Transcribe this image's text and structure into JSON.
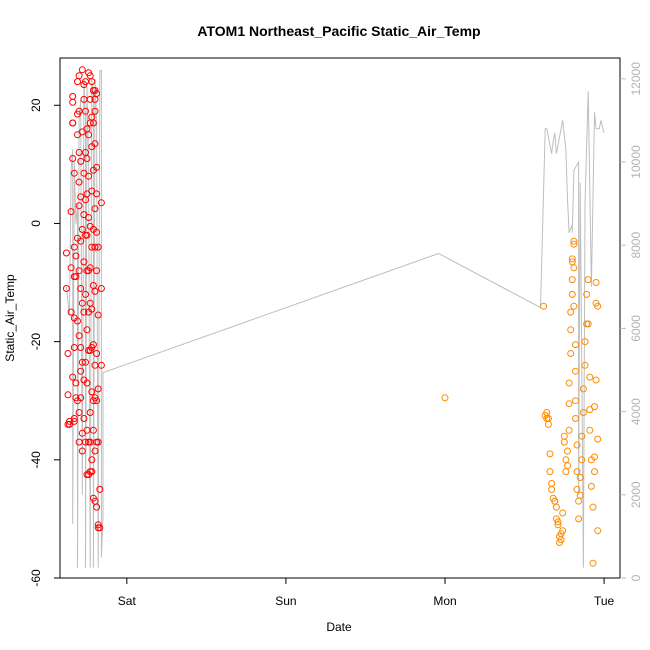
{
  "chart_data": {
    "type": "scatter",
    "title": "ATOM1 Northeast_Pacific Static_Air_Temp",
    "xlabel": "Date",
    "ylabel": "Static_Air_Temp",
    "x_ticks": [
      "Sat",
      "Sun",
      "Mon",
      "Tue"
    ],
    "x_range_days": [
      -0.42,
      3.1
    ],
    "x_tick_positions_days": [
      0,
      1,
      2,
      3
    ],
    "y_left": {
      "range": [
        -60,
        28
      ],
      "ticks": [
        20,
        0,
        -20,
        -40,
        -60
      ]
    },
    "y_right": {
      "range": [
        0,
        12500
      ],
      "ticks": [
        0,
        2000,
        4000,
        6000,
        8000,
        10000,
        12000
      ],
      "color": "#bebebe"
    },
    "grid": false,
    "colors": {
      "group1": "#ff0000",
      "group2": "#ff8c00",
      "altitude_line": "#bebebe"
    },
    "series": [
      {
        "color": "#ff0000",
        "points": [
          [
            -0.38,
            -5
          ],
          [
            -0.38,
            -11
          ],
          [
            -0.37,
            -22
          ],
          [
            -0.37,
            -29
          ],
          [
            -0.37,
            -34
          ],
          [
            -0.36,
            -34
          ],
          [
            -0.36,
            -33.5
          ],
          [
            -0.35,
            -15
          ],
          [
            -0.35,
            -7.5
          ],
          [
            -0.35,
            2
          ],
          [
            -0.34,
            11
          ],
          [
            -0.34,
            17
          ],
          [
            -0.34,
            17
          ],
          [
            -0.34,
            20.5
          ],
          [
            -0.34,
            21.5
          ],
          [
            -0.34,
            -26
          ],
          [
            -0.33,
            -33
          ],
          [
            -0.33,
            -33.5
          ],
          [
            -0.33,
            -21
          ],
          [
            -0.33,
            -16
          ],
          [
            -0.33,
            -9
          ],
          [
            -0.33,
            -4
          ],
          [
            -0.33,
            8.5
          ],
          [
            -0.32,
            -27
          ],
          [
            -0.32,
            -29.5
          ],
          [
            -0.32,
            -9
          ],
          [
            -0.32,
            -5.5
          ],
          [
            -0.31,
            -16.5
          ],
          [
            -0.31,
            15
          ],
          [
            -0.31,
            18.5
          ],
          [
            -0.31,
            24
          ],
          [
            -0.31,
            -2.5
          ],
          [
            -0.31,
            -30
          ],
          [
            -0.3,
            -32
          ],
          [
            -0.3,
            -37
          ],
          [
            -0.3,
            -19
          ],
          [
            -0.3,
            -8
          ],
          [
            -0.3,
            3
          ],
          [
            -0.3,
            7
          ],
          [
            -0.3,
            12
          ],
          [
            -0.3,
            25
          ],
          [
            -0.3,
            19
          ],
          [
            -0.29,
            -29.5
          ],
          [
            -0.29,
            -25
          ],
          [
            -0.29,
            -21
          ],
          [
            -0.29,
            -11
          ],
          [
            -0.29,
            -3
          ],
          [
            -0.29,
            4.5
          ],
          [
            -0.29,
            10.5
          ],
          [
            -0.28,
            -38.5
          ],
          [
            -0.28,
            -35.5
          ],
          [
            -0.28,
            -23.5
          ],
          [
            -0.28,
            -13.5
          ],
          [
            -0.28,
            -1
          ],
          [
            -0.28,
            15.5
          ],
          [
            -0.28,
            26
          ],
          [
            -0.27,
            -33
          ],
          [
            -0.27,
            -26.5
          ],
          [
            -0.27,
            -15
          ],
          [
            -0.27,
            -6.5
          ],
          [
            -0.27,
            1.5
          ],
          [
            -0.27,
            8.5
          ],
          [
            -0.27,
            21
          ],
          [
            -0.27,
            23.5
          ],
          [
            -0.26,
            -37
          ],
          [
            -0.26,
            -23.5
          ],
          [
            -0.26,
            -12
          ],
          [
            -0.26,
            -2
          ],
          [
            -0.26,
            4
          ],
          [
            -0.26,
            12
          ],
          [
            -0.26,
            24
          ],
          [
            -0.26,
            19
          ],
          [
            -0.25,
            -42.5
          ],
          [
            -0.25,
            -35
          ],
          [
            -0.25,
            -27
          ],
          [
            -0.25,
            -18
          ],
          [
            -0.25,
            -8
          ],
          [
            -0.25,
            -2
          ],
          [
            -0.25,
            5
          ],
          [
            -0.25,
            11
          ],
          [
            -0.25,
            16
          ],
          [
            -0.24,
            -42.5
          ],
          [
            -0.24,
            -37
          ],
          [
            -0.24,
            -21.5
          ],
          [
            -0.24,
            -15
          ],
          [
            -0.24,
            -8
          ],
          [
            -0.24,
            1
          ],
          [
            -0.24,
            8
          ],
          [
            -0.24,
            15
          ],
          [
            -0.24,
            25.5
          ],
          [
            -0.23,
            -42
          ],
          [
            -0.23,
            -37
          ],
          [
            -0.23,
            -32
          ],
          [
            -0.23,
            -21.5
          ],
          [
            -0.23,
            -13.5
          ],
          [
            -0.23,
            -7.5
          ],
          [
            -0.23,
            -0.5
          ],
          [
            -0.23,
            17
          ],
          [
            -0.23,
            25
          ],
          [
            -0.23,
            21
          ],
          [
            -0.22,
            -42
          ],
          [
            -0.22,
            -40
          ],
          [
            -0.22,
            -28.5
          ],
          [
            -0.22,
            -21
          ],
          [
            -0.22,
            -14.5
          ],
          [
            -0.22,
            -4
          ],
          [
            -0.22,
            5.5
          ],
          [
            -0.22,
            13
          ],
          [
            -0.22,
            18
          ],
          [
            -0.22,
            24
          ],
          [
            -0.21,
            -46.5
          ],
          [
            -0.21,
            -35
          ],
          [
            -0.21,
            -30
          ],
          [
            -0.21,
            -20.5
          ],
          [
            -0.21,
            -10.5
          ],
          [
            -0.21,
            -1
          ],
          [
            -0.21,
            9
          ],
          [
            -0.21,
            17
          ],
          [
            -0.21,
            22.5
          ],
          [
            -0.2,
            -47
          ],
          [
            -0.2,
            -38.5
          ],
          [
            -0.2,
            -29.5
          ],
          [
            -0.2,
            -24
          ],
          [
            -0.2,
            -11.5
          ],
          [
            -0.2,
            -4
          ],
          [
            -0.2,
            2.5
          ],
          [
            -0.2,
            13.5
          ],
          [
            -0.2,
            19
          ],
          [
            -0.2,
            22.5
          ],
          [
            -0.2,
            21
          ],
          [
            -0.19,
            -48
          ],
          [
            -0.19,
            -37
          ],
          [
            -0.19,
            -30
          ],
          [
            -0.19,
            -22
          ],
          [
            -0.19,
            -8
          ],
          [
            -0.19,
            -1.5
          ],
          [
            -0.19,
            5
          ],
          [
            -0.19,
            9.5
          ],
          [
            -0.19,
            22
          ],
          [
            -0.18,
            -51
          ],
          [
            -0.18,
            -51.5
          ],
          [
            -0.18,
            -37
          ],
          [
            -0.18,
            -28
          ],
          [
            -0.18,
            -15.5
          ],
          [
            -0.18,
            -4
          ],
          [
            -0.17,
            -51.5
          ],
          [
            -0.17,
            -45
          ],
          [
            -0.16,
            -24
          ],
          [
            -0.16,
            -11
          ],
          [
            -0.16,
            3.5
          ]
        ]
      },
      {
        "color": "#ff8c00",
        "points": [
          [
            2.0,
            -29.5
          ],
          [
            2.62,
            -14
          ],
          [
            2.63,
            -32.5
          ],
          [
            2.64,
            -32
          ],
          [
            2.64,
            -33
          ],
          [
            2.65,
            -33
          ],
          [
            2.65,
            -34
          ],
          [
            2.66,
            -39
          ],
          [
            2.66,
            -42
          ],
          [
            2.67,
            -44
          ],
          [
            2.67,
            -45
          ],
          [
            2.68,
            -46.5
          ],
          [
            2.69,
            -47
          ],
          [
            2.69,
            -47
          ],
          [
            2.7,
            -48
          ],
          [
            2.7,
            -50
          ],
          [
            2.71,
            -50.5
          ],
          [
            2.71,
            -51
          ],
          [
            2.72,
            -53
          ],
          [
            2.72,
            -54
          ],
          [
            2.73,
            -53.5
          ],
          [
            2.73,
            -52.5
          ],
          [
            2.74,
            -52
          ],
          [
            2.74,
            -49
          ],
          [
            2.75,
            -36
          ],
          [
            2.75,
            -37
          ],
          [
            2.76,
            -40
          ],
          [
            2.76,
            -42
          ],
          [
            2.77,
            -41
          ],
          [
            2.77,
            -38.5
          ],
          [
            2.78,
            -35
          ],
          [
            2.78,
            -30.5
          ],
          [
            2.78,
            -27
          ],
          [
            2.79,
            -22
          ],
          [
            2.79,
            -18
          ],
          [
            2.79,
            -15
          ],
          [
            2.8,
            -12
          ],
          [
            2.8,
            -9.5
          ],
          [
            2.8,
            -6.5
          ],
          [
            2.8,
            -6
          ],
          [
            2.81,
            -3
          ],
          [
            2.81,
            -3.5
          ],
          [
            2.81,
            -7.5
          ],
          [
            2.81,
            -14
          ],
          [
            2.82,
            -20.5
          ],
          [
            2.82,
            -25
          ],
          [
            2.82,
            -30
          ],
          [
            2.82,
            -33
          ],
          [
            2.83,
            -37.5
          ],
          [
            2.83,
            -42
          ],
          [
            2.83,
            -45
          ],
          [
            2.84,
            -47
          ],
          [
            2.84,
            -50
          ],
          [
            2.85,
            -46
          ],
          [
            2.85,
            -43
          ],
          [
            2.86,
            -40
          ],
          [
            2.86,
            -36
          ],
          [
            2.87,
            -32
          ],
          [
            2.87,
            -28
          ],
          [
            2.88,
            -24
          ],
          [
            2.88,
            -20
          ],
          [
            2.89,
            -17
          ],
          [
            2.89,
            -12
          ],
          [
            2.9,
            -9.5
          ],
          [
            2.9,
            -17
          ],
          [
            2.91,
            -26
          ],
          [
            2.91,
            -31.5
          ],
          [
            2.91,
            -35
          ],
          [
            2.92,
            -40
          ],
          [
            2.92,
            -44.5
          ],
          [
            2.93,
            -48
          ],
          [
            2.93,
            -57.5
          ],
          [
            2.94,
            -42
          ],
          [
            2.94,
            -39.5
          ],
          [
            2.94,
            -31
          ],
          [
            2.95,
            -26.5
          ],
          [
            2.95,
            -13.5
          ],
          [
            2.95,
            -10
          ],
          [
            2.96,
            -14
          ],
          [
            2.96,
            -36.5
          ],
          [
            2.96,
            -52
          ]
        ]
      }
    ],
    "altitude_line": {
      "color": "#bebebe",
      "note": "Secondary-axis trace, values on right axis",
      "points": [
        [
          -0.38,
          7000
        ],
        [
          -0.36,
          6300
        ],
        [
          -0.35,
          9800
        ],
        [
          -0.34,
          10300
        ],
        [
          -0.34,
          1300
        ],
        [
          -0.33,
          10000
        ],
        [
          -0.32,
          8500
        ],
        [
          -0.31,
          9000
        ],
        [
          -0.31,
          250
        ],
        [
          -0.3,
          11000
        ],
        [
          -0.29,
          11500
        ],
        [
          -0.28,
          2000
        ],
        [
          -0.27,
          12000
        ],
        [
          -0.26,
          11000
        ],
        [
          -0.26,
          250
        ],
        [
          -0.25,
          11800
        ],
        [
          -0.24,
          10000
        ],
        [
          -0.23,
          250
        ],
        [
          -0.22,
          12000
        ],
        [
          -0.21,
          11500
        ],
        [
          -0.21,
          250
        ],
        [
          -0.2,
          12000
        ],
        [
          -0.19,
          11000
        ],
        [
          -0.18,
          250
        ],
        [
          -0.17,
          12200
        ],
        [
          -0.16,
          12200
        ],
        [
          -0.16,
          500
        ],
        [
          -0.15,
          1500
        ],
        [
          -0.15,
          4950
        ],
        [
          -0.14,
          4950
        ],
        [
          1.96,
          7800
        ],
        [
          2.6,
          6500
        ],
        [
          2.63,
          10800
        ],
        [
          2.64,
          10800
        ],
        [
          2.66,
          10400
        ],
        [
          2.67,
          10200
        ],
        [
          2.68,
          10500
        ],
        [
          2.69,
          10700
        ],
        [
          2.7,
          10200
        ],
        [
          2.74,
          11000
        ],
        [
          2.76,
          10300
        ],
        [
          2.77,
          9100
        ],
        [
          2.78,
          8300
        ],
        [
          2.8,
          8500
        ],
        [
          2.8,
          8300
        ],
        [
          2.81,
          9800
        ],
        [
          2.84,
          10000
        ],
        [
          2.84,
          2000
        ],
        [
          2.85,
          9500
        ],
        [
          2.86,
          5000
        ],
        [
          2.87,
          250
        ],
        [
          2.88,
          9000
        ],
        [
          2.9,
          11700
        ],
        [
          2.92,
          7000
        ],
        [
          2.94,
          11200
        ],
        [
          2.95,
          10800
        ],
        [
          2.97,
          10800
        ],
        [
          2.98,
          11000
        ],
        [
          3.0,
          10700
        ]
      ]
    }
  }
}
